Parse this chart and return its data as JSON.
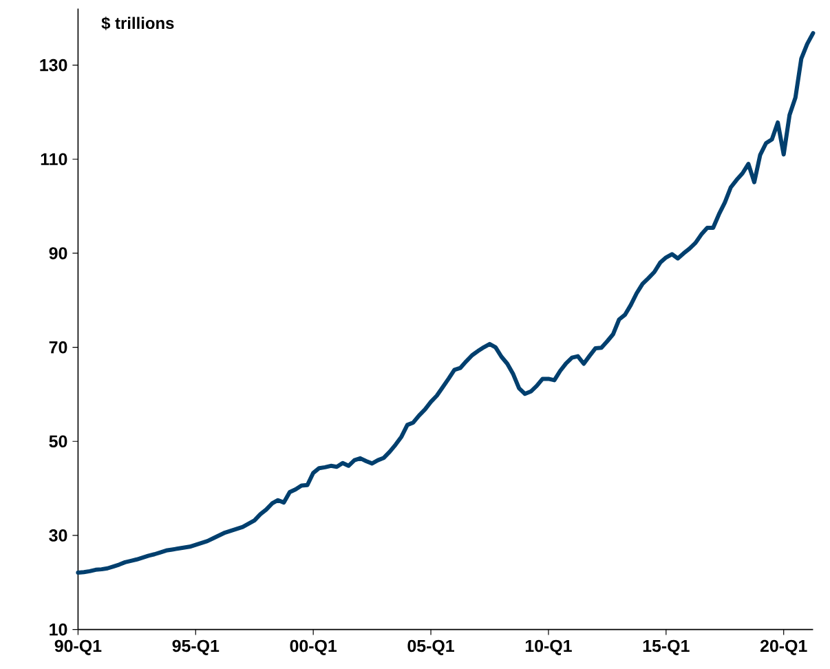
{
  "chart_data": {
    "type": "line",
    "ylabel": "$ trillions",
    "color": "#003f6e",
    "categories": [
      "90-Q1",
      null,
      null,
      null,
      null,
      null,
      null,
      null,
      null,
      null,
      null,
      null,
      null,
      null,
      null,
      null,
      null,
      null,
      null,
      null,
      "95-Q1",
      null,
      null,
      null,
      null,
      null,
      null,
      null,
      null,
      null,
      null,
      null,
      null,
      null,
      null,
      null,
      null,
      null,
      null,
      null,
      "00-Q1",
      null,
      null,
      null,
      null,
      null,
      null,
      null,
      null,
      null,
      null,
      null,
      null,
      null,
      null,
      null,
      null,
      null,
      null,
      null,
      "05-Q1",
      null,
      null,
      null,
      null,
      null,
      null,
      null,
      null,
      null,
      null,
      null,
      null,
      null,
      null,
      null,
      null,
      null,
      null,
      null,
      "10-Q1",
      null,
      null,
      null,
      null,
      null,
      null,
      null,
      null,
      null,
      null,
      null,
      null,
      null,
      null,
      null,
      null,
      null,
      null,
      null,
      "15-Q1",
      null,
      null,
      null,
      null,
      null,
      null,
      null,
      null,
      null,
      null,
      null,
      null,
      null,
      null,
      null,
      null,
      null,
      null,
      null,
      "20-Q1",
      null,
      null,
      null,
      null,
      null
    ],
    "values": [
      22.1,
      22.2,
      22.4,
      22.7,
      22.8,
      23.0,
      23.4,
      23.8,
      24.3,
      24.6,
      24.9,
      25.3,
      25.7,
      26.0,
      26.4,
      26.8,
      27.0,
      27.2,
      27.4,
      27.6,
      28.0,
      28.4,
      28.8,
      29.4,
      30.0,
      30.6,
      31.0,
      31.4,
      31.8,
      32.5,
      33.2,
      34.5,
      35.5,
      36.8,
      37.5,
      37.0,
      39.2,
      39.8,
      40.6,
      40.7,
      43.3,
      44.3,
      44.5,
      44.8,
      44.6,
      45.4,
      44.8,
      46.0,
      46.4,
      45.8,
      45.3,
      46.0,
      46.5,
      47.8,
      49.3,
      51.0,
      53.5,
      54.0,
      55.5,
      56.8,
      58.4,
      59.7,
      61.5,
      63.3,
      65.2,
      65.6,
      67.0,
      68.3,
      69.2,
      70.0,
      70.7,
      70.0,
      68.0,
      66.5,
      64.3,
      61.3,
      60.1,
      60.6,
      61.8,
      63.3,
      63.3,
      63.0,
      65.0,
      66.6,
      67.8,
      68.1,
      66.5,
      68.2,
      69.8,
      69.9,
      71.3,
      72.8,
      75.9,
      76.9,
      79.0,
      81.5,
      83.5,
      84.7,
      86.0,
      88.0,
      89.1,
      89.8,
      88.9,
      90.0,
      91.0,
      92.2,
      94.0,
      95.4,
      95.4,
      98.3,
      100.8,
      104.0,
      105.6,
      107.0,
      109.0,
      105.1,
      110.9,
      113.4,
      114.2,
      117.8,
      111.0,
      119.4,
      123.1,
      131.4,
      134.5,
      136.8
    ],
    "ylim": [
      10,
      142
    ],
    "yticks": [
      10,
      30,
      50,
      70,
      90,
      110,
      130
    ]
  }
}
